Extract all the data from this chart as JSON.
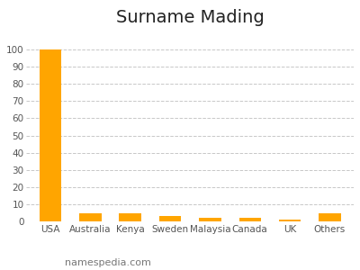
{
  "title": "Surname Mading",
  "categories": [
    "USA",
    "Australia",
    "Kenya",
    "Sweden",
    "Malaysia",
    "Canada",
    "UK",
    "Others"
  ],
  "values": [
    100,
    4.5,
    4.5,
    3.0,
    2.0,
    2.0,
    1.0,
    4.5
  ],
  "bar_color": "#FFA500",
  "ylim": [
    0,
    110
  ],
  "yticks": [
    0,
    10,
    20,
    30,
    40,
    50,
    60,
    70,
    80,
    90,
    100
  ],
  "grid_color": "#c8c8c8",
  "background_color": "#ffffff",
  "title_fontsize": 14,
  "xtick_fontsize": 7.5,
  "ytick_fontsize": 7.5,
  "watermark": "namespedia.com",
  "watermark_fontsize": 8
}
